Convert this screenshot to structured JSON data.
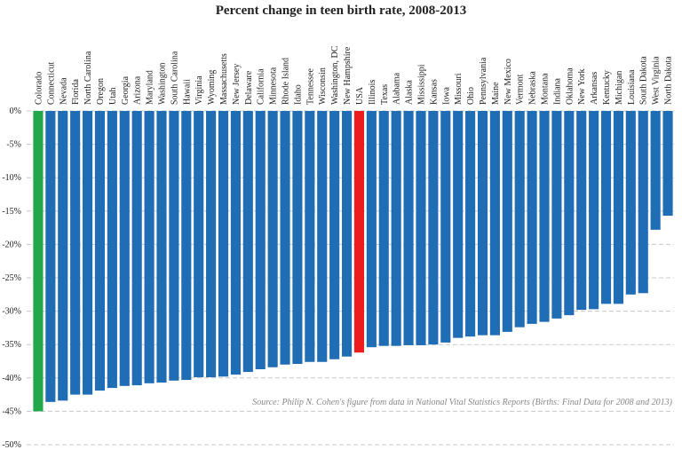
{
  "chart_data": {
    "type": "bar",
    "title": "Percent change in teen birth rate, 2008-2013",
    "categories": [
      "Colorado",
      "Connecticut",
      "Nevada",
      "Florida",
      "North Carolina",
      "Oregon",
      "Utah",
      "Georgia",
      "Arizona",
      "Maryland",
      "Washington",
      "South Carolina",
      "Hawaii",
      "Virginia",
      "Wyoming",
      "Massachusetts",
      "New Jersey",
      "Delaware",
      "California",
      "Minnesota",
      "Rhode Island",
      "Idaho",
      "Tennessee",
      "Wisconsin",
      "Washington, DC",
      "New Hampshire",
      "USA",
      "Illinois",
      "Texas",
      "Alabama",
      "Alaska",
      "Mississippi",
      "Kansas",
      "Iowa",
      "Missouri",
      "Ohio",
      "Pennsylvania",
      "Maine",
      "New Mexico",
      "Vermont",
      "Nebraska",
      "Montana",
      "Indiana",
      "Oklahoma",
      "New York",
      "Arkansas",
      "Kentucky",
      "Michigan",
      "Louisiana",
      "South Dakota",
      "West Virginia",
      "North Dakota"
    ],
    "values": [
      -45,
      -43.6,
      -43.4,
      -42.5,
      -42.5,
      -41.9,
      -41.5,
      -41.2,
      -41.1,
      -40.8,
      -40.7,
      -40.4,
      -40.3,
      -39.9,
      -39.9,
      -39.8,
      -39.5,
      -39.1,
      -38.7,
      -38.4,
      -38,
      -37.9,
      -37.6,
      -37.6,
      -37.2,
      -36.8,
      -36.2,
      -35.4,
      -35.2,
      -35.2,
      -35.1,
      -35.1,
      -35,
      -34.7,
      -34,
      -33.8,
      -33.6,
      -33.6,
      -33.1,
      -32.4,
      -31.9,
      -31.6,
      -31.1,
      -30.6,
      -29.8,
      -29.7,
      -28.9,
      -28.9,
      -27.5,
      -27.3,
      -17.8,
      -15.7
    ],
    "colors": [
      "#22a84a",
      "#1f6db5",
      "#1f6db5",
      "#1f6db5",
      "#1f6db5",
      "#1f6db5",
      "#1f6db5",
      "#1f6db5",
      "#1f6db5",
      "#1f6db5",
      "#1f6db5",
      "#1f6db5",
      "#1f6db5",
      "#1f6db5",
      "#1f6db5",
      "#1f6db5",
      "#1f6db5",
      "#1f6db5",
      "#1f6db5",
      "#1f6db5",
      "#1f6db5",
      "#1f6db5",
      "#1f6db5",
      "#1f6db5",
      "#1f6db5",
      "#1f6db5",
      "#ee1c1c",
      "#1f6db5",
      "#1f6db5",
      "#1f6db5",
      "#1f6db5",
      "#1f6db5",
      "#1f6db5",
      "#1f6db5",
      "#1f6db5",
      "#1f6db5",
      "#1f6db5",
      "#1f6db5",
      "#1f6db5",
      "#1f6db5",
      "#1f6db5",
      "#1f6db5",
      "#1f6db5",
      "#1f6db5",
      "#1f6db5",
      "#1f6db5",
      "#1f6db5",
      "#1f6db5",
      "#1f6db5",
      "#1f6db5",
      "#1f6db5",
      "#1f6db5"
    ],
    "ylim": [
      -50,
      0
    ],
    "yticks": [
      {
        "value": 0,
        "label": "0%"
      },
      {
        "value": -5,
        "label": "-5%"
      },
      {
        "value": -10,
        "label": "-10%"
      },
      {
        "value": -15,
        "label": "-15%"
      },
      {
        "value": -20,
        "label": "-20%"
      },
      {
        "value": -25,
        "label": "-25%"
      },
      {
        "value": -30,
        "label": "-30%"
      },
      {
        "value": -35,
        "label": "-35%"
      },
      {
        "value": -40,
        "label": "-40%"
      },
      {
        "value": -45,
        "label": "-45%"
      },
      {
        "value": -50,
        "label": "-50%"
      }
    ],
    "grid": true,
    "annotation": "Source: Philip N. Cohen's figure from data in National Vital Statistics Reports (Births: Final Data for 2008 and 2013)"
  }
}
